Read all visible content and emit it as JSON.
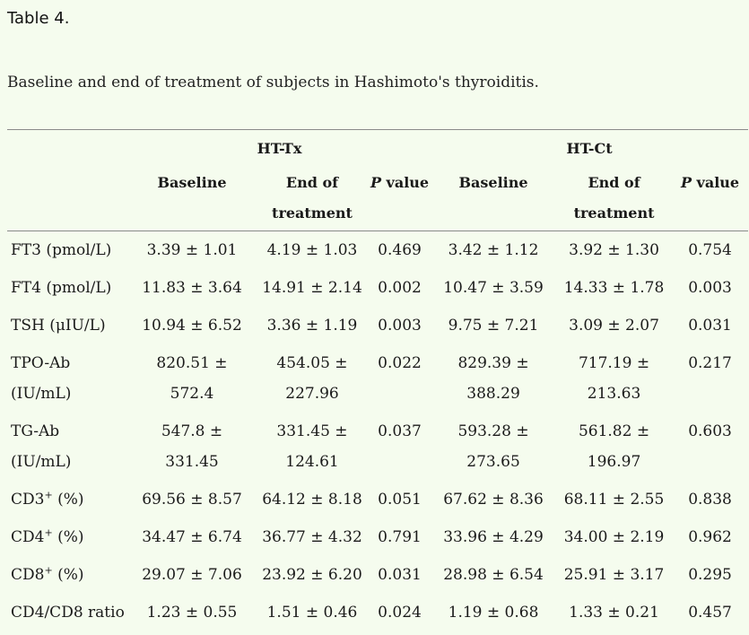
{
  "table_label": "Table 4.",
  "caption": "Baseline and end of treatment of subjects in Hashimoto's thyroiditis.",
  "groups": [
    "HT-Tx",
    "HT-Ct"
  ],
  "subheaders": {
    "baseline": "Baseline",
    "end_line1": "End of",
    "end_line2": "treatment",
    "p_italic": "P",
    "p_rest": " value"
  },
  "rows": [
    {
      "label_main": "FT3 (pmol/L)",
      "label_sup": "",
      "label_tail": "",
      "label_line2": "",
      "tx_base": "3.39 ± 1.01",
      "tx_base_2": "",
      "tx_end": "4.19 ± 1.03",
      "tx_end_2": "",
      "tx_p": "0.469",
      "ct_base": "3.42 ± 1.12",
      "ct_base_2": "",
      "ct_end": "3.92 ± 1.30",
      "ct_end_2": "",
      "ct_p": "0.754"
    },
    {
      "label_main": "FT4 (pmol/L)",
      "label_sup": "",
      "label_tail": "",
      "label_line2": "",
      "tx_base": "11.83 ± 3.64",
      "tx_base_2": "",
      "tx_end": "14.91 ± 2.14",
      "tx_end_2": "",
      "tx_p": "0.002",
      "ct_base": "10.47 ± 3.59",
      "ct_base_2": "",
      "ct_end": "14.33 ± 1.78",
      "ct_end_2": "",
      "ct_p": "0.003"
    },
    {
      "label_main": "TSH (μIU/L)",
      "label_sup": "",
      "label_tail": "",
      "label_line2": "",
      "tx_base": "10.94 ± 6.52",
      "tx_base_2": "",
      "tx_end": "3.36 ± 1.19",
      "tx_end_2": "",
      "tx_p": "0.003",
      "ct_base": "9.75 ± 7.21",
      "ct_base_2": "",
      "ct_end": "3.09 ± 2.07",
      "ct_end_2": "",
      "ct_p": "0.031"
    },
    {
      "label_main": "TPO-Ab",
      "label_sup": "",
      "label_tail": "",
      "label_line2": "(IU/mL)",
      "tx_base": "820.51 ±",
      "tx_base_2": "572.4",
      "tx_end": "454.05 ±",
      "tx_end_2": "227.96",
      "tx_p": "0.022",
      "ct_base": "829.39 ±",
      "ct_base_2": "388.29",
      "ct_end": "717.19 ±",
      "ct_end_2": "213.63",
      "ct_p": "0.217"
    },
    {
      "label_main": "TG-Ab",
      "label_sup": "",
      "label_tail": "",
      "label_line2": "(IU/mL)",
      "tx_base": "547.8 ±",
      "tx_base_2": "331.45",
      "tx_end": "331.45 ±",
      "tx_end_2": "124.61",
      "tx_p": "0.037",
      "ct_base": "593.28 ±",
      "ct_base_2": "273.65",
      "ct_end": "561.82 ±",
      "ct_end_2": "196.97",
      "ct_p": "0.603"
    },
    {
      "label_main": "CD3",
      "label_sup": "+",
      "label_tail": " (%)",
      "label_line2": "",
      "tx_base": "69.56 ± 8.57",
      "tx_base_2": "",
      "tx_end": "64.12 ± 8.18",
      "tx_end_2": "",
      "tx_p": "0.051",
      "ct_base": "67.62 ± 8.36",
      "ct_base_2": "",
      "ct_end": "68.11 ± 2.55",
      "ct_end_2": "",
      "ct_p": "0.838"
    },
    {
      "label_main": "CD4",
      "label_sup": "+",
      "label_tail": " (%)",
      "label_line2": "",
      "tx_base": "34.47 ± 6.74",
      "tx_base_2": "",
      "tx_end": "36.77 ± 4.32",
      "tx_end_2": "",
      "tx_p": "0.791",
      "ct_base": "33.96 ± 4.29",
      "ct_base_2": "",
      "ct_end": "34.00 ± 2.19",
      "ct_end_2": "",
      "ct_p": "0.962"
    },
    {
      "label_main": "CD8",
      "label_sup": "+",
      "label_tail": " (%)",
      "label_line2": "",
      "tx_base": "29.07 ± 7.06",
      "tx_base_2": "",
      "tx_end": "23.92 ± 6.20",
      "tx_end_2": "",
      "tx_p": "0.031",
      "ct_base": "28.98 ± 6.54",
      "ct_base_2": "",
      "ct_end": "25.91 ± 3.17",
      "ct_end_2": "",
      "ct_p": "0.295"
    },
    {
      "label_main": "CD4/CD8 ratio",
      "label_sup": "",
      "label_tail": "",
      "label_line2": "",
      "tx_base": "1.23 ± 0.55",
      "tx_base_2": "",
      "tx_end": "1.51 ± 0.46",
      "tx_end_2": "",
      "tx_p": "0.024",
      "ct_base": "1.19 ± 0.68",
      "ct_base_2": "",
      "ct_end": "1.33 ± 0.21",
      "ct_end_2": "",
      "ct_p": "0.457"
    }
  ]
}
